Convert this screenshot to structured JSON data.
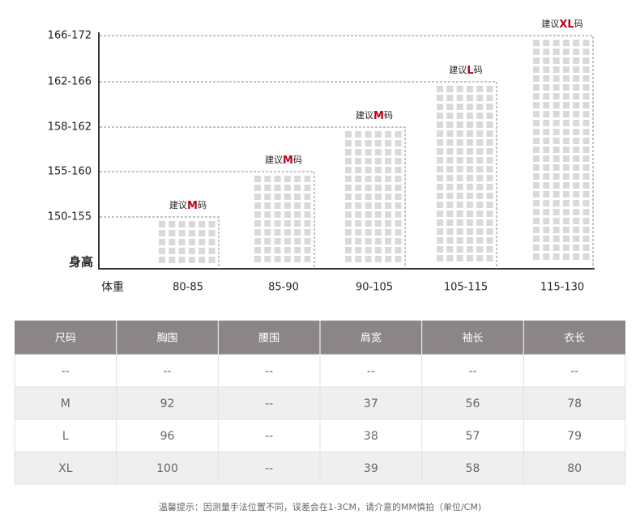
{
  "size_chart": {
    "y_axis_title": "身高",
    "x_axis_title": "体重",
    "heights": [
      "150-155",
      "155-160",
      "158-162",
      "162-166",
      "166-172"
    ],
    "weights": [
      "80-85",
      "85-90",
      "90-105",
      "105-115",
      "115-130"
    ],
    "suggestions": [
      {
        "prefix": "建议",
        "size": "M",
        "suffix": "码"
      },
      {
        "prefix": "建议",
        "size": "M",
        "suffix": "码"
      },
      {
        "prefix": "建议",
        "size": "M",
        "suffix": "码"
      },
      {
        "prefix": "建议",
        "size": "L",
        "suffix": "码"
      },
      {
        "prefix": "建议",
        "size": "XL",
        "suffix": "码"
      }
    ]
  },
  "table": {
    "header": [
      "尺码",
      "胸围",
      "腰围",
      "肩宽",
      "袖长",
      "衣长"
    ],
    "rows": [
      [
        "--",
        "--",
        "--",
        "--",
        "--",
        "--"
      ],
      [
        "M",
        "92",
        "--",
        "37",
        "56",
        "78"
      ],
      [
        "L",
        "96",
        "--",
        "38",
        "57",
        "79"
      ],
      [
        "XL",
        "100",
        "--",
        "39",
        "58",
        "80"
      ]
    ]
  },
  "note": "温馨提示：因测量手法位置不同，误差会在1-3CM，请介意的MM慎拍（单位/CM)"
}
